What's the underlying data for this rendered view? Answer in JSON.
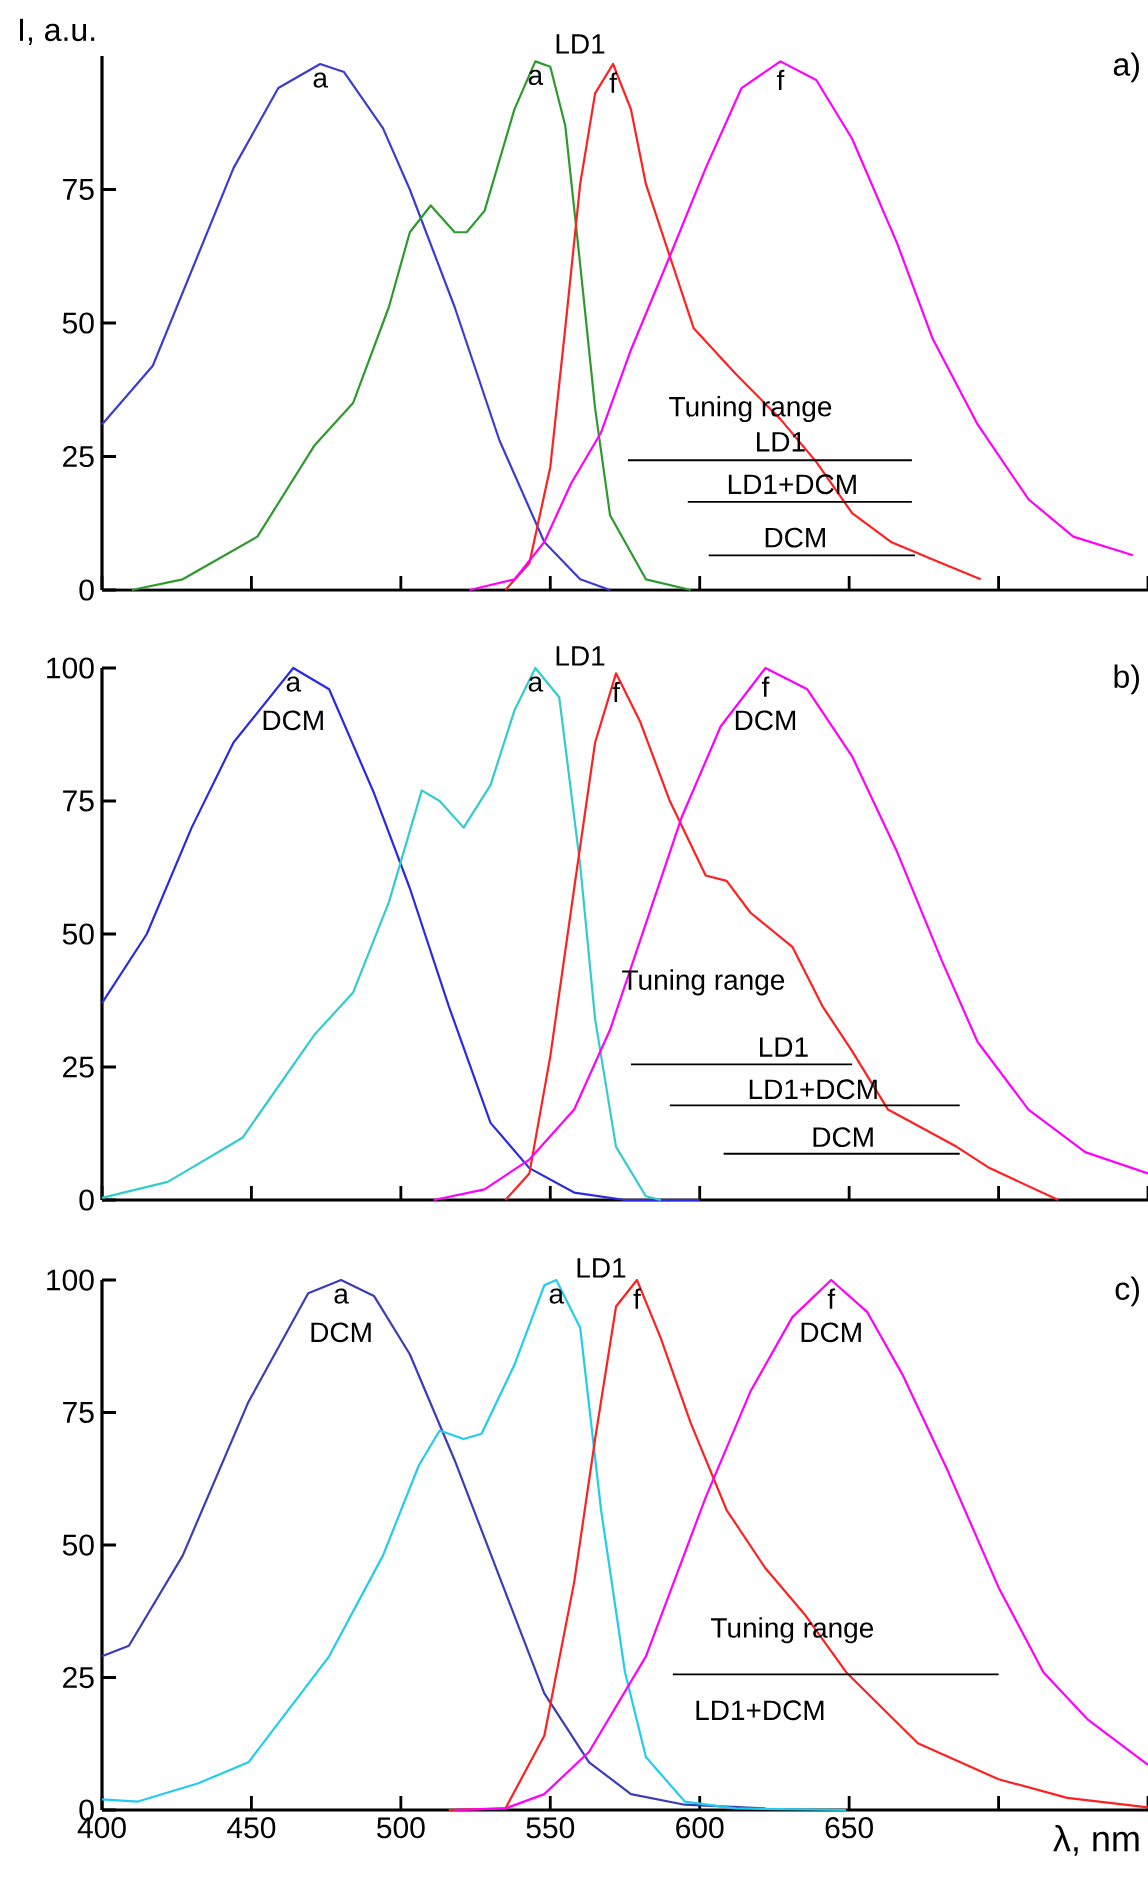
{
  "chart_data": [
    {
      "type": "line",
      "title": "a)",
      "ylabel": "I, a.u.",
      "xlim": [
        400,
        750
      ],
      "ylim": [
        0,
        100
      ],
      "tick_labels": "y",
      "xticks": [
        {
          "value": 400,
          "label": null
        },
        {
          "value": 450,
          "label": null
        },
        {
          "value": 500,
          "label": null
        },
        {
          "value": 550,
          "label": null
        },
        {
          "value": 600,
          "label": null
        },
        {
          "value": 650,
          "label": null
        },
        {
          "value": 700,
          "label": null
        },
        {
          "value": 750,
          "label": null
        }
      ],
      "yticks": [
        0,
        25,
        50,
        75
      ],
      "series": [
        {
          "color": "#3c3cd0",
          "x": [
            400,
            417,
            444,
            459,
            473,
            481,
            494,
            503,
            518,
            533,
            548,
            560,
            570
          ],
          "values": [
            31,
            42,
            79,
            94,
            98.5,
            97,
            86.5,
            75,
            53,
            28,
            9,
            2,
            0
          ]
        },
        {
          "color": "#2e9a2e",
          "x": [
            410,
            427,
            452,
            471,
            484,
            496,
            503,
            510,
            518,
            522,
            528,
            538,
            545,
            550,
            555,
            560,
            565,
            570,
            582,
            597
          ],
          "values": [
            0,
            2,
            10,
            27,
            35,
            53,
            67,
            72,
            67,
            67,
            71,
            90,
            99,
            98,
            87,
            61,
            34,
            14,
            2,
            0
          ]
        },
        {
          "color": "#ff2020",
          "x": [
            535,
            543,
            550,
            555,
            560,
            565,
            571,
            577,
            582,
            590,
            598,
            612,
            627,
            639,
            651,
            664,
            681,
            694
          ],
          "values": [
            0,
            5,
            23,
            49,
            76,
            93,
            98.5,
            90,
            76,
            62.5,
            49,
            40.5,
            32,
            24,
            14.4,
            9,
            5,
            2
          ]
        },
        {
          "color": "#ff00ff",
          "x": [
            523,
            538,
            548,
            557,
            567,
            577,
            590,
            602,
            614,
            627,
            639,
            651,
            666,
            678,
            693,
            710,
            725,
            745
          ],
          "values": [
            0,
            2,
            9,
            20,
            29.5,
            45,
            62.5,
            79,
            94,
            99,
            95.5,
            84.5,
            65,
            47,
            31,
            17,
            10,
            6.5
          ]
        },
        {
          "color": "#000000",
          "x": [
            576,
            671
          ],
          "values": [
            24.3,
            24.3
          ]
        },
        {
          "color": "#000000",
          "x": [
            596,
            671
          ],
          "values": [
            16.5,
            16.5
          ]
        },
        {
          "color": "#000000",
          "x": [
            603,
            672
          ],
          "values": [
            6.5,
            6.5
          ]
        }
      ],
      "annotations": [
        {
          "text": "a",
          "x": 473,
          "y": 98.5
        },
        {
          "text": "a",
          "x": 545,
          "y": 99
        },
        "LD1",
        {
          "text": "f",
          "x": 571,
          "y": 98.5
        },
        {
          "text": "f",
          "x": 627,
          "y": 99
        },
        "Tuning range",
        {
          "text": "LD1",
          "x": 627,
          "y": 25.5
        },
        {
          "text": "LD1+DCM",
          "x": 631,
          "y": 17.5
        },
        {
          "text": "DCM",
          "x": 632,
          "y": 7.5
        }
      ]
    },
    {
      "type": "line",
      "title": "b)",
      "xlim": [
        400,
        750
      ],
      "ylim": [
        0,
        100
      ],
      "tick_labels": "y",
      "xticks": [
        {
          "value": 400,
          "label": null
        },
        {
          "value": 450,
          "label": null
        },
        {
          "value": 500,
          "label": null
        },
        {
          "value": 550,
          "label": null
        },
        {
          "value": 600,
          "label": null
        },
        {
          "value": 650,
          "label": null
        },
        {
          "value": 700,
          "label": null
        },
        {
          "value": 750,
          "label": null
        }
      ],
      "yticks": [
        0,
        25,
        50,
        75,
        100
      ],
      "series": [
        {
          "color": "#2a2ae0",
          "x": [
            400,
            415,
            430,
            444,
            464,
            476,
            491,
            503,
            516,
            530,
            543,
            558,
            575,
            600
          ],
          "values": [
            37,
            50,
            70,
            86,
            100,
            96,
            76.5,
            58.6,
            36.5,
            14.5,
            6,
            1.4,
            0,
            0
          ]
        },
        {
          "color": "#33cccc",
          "x": [
            400,
            422,
            447,
            471,
            484,
            496,
            507,
            513,
            521,
            530,
            538,
            545,
            553,
            560,
            565,
            572,
            582,
            587
          ],
          "values": [
            0.4,
            3.4,
            11.7,
            31,
            39,
            56,
            77,
            75,
            70,
            78,
            92,
            100,
            94.5,
            63,
            34,
            10,
            0.7,
            0
          ]
        },
        {
          "color": "#ff2020",
          "x": [
            535,
            543,
            550,
            558,
            565,
            572,
            580,
            590,
            602,
            609,
            617,
            631,
            641,
            651,
            663,
            686,
            697,
            720
          ],
          "values": [
            0,
            5,
            27,
            58.6,
            86,
            99,
            90,
            75,
            61,
            60,
            54,
            47.6,
            36.5,
            28,
            17,
            10,
            6,
            0
          ]
        },
        {
          "color": "#ff00ff",
          "x": [
            511,
            528,
            543,
            558,
            570,
            582,
            594,
            607,
            622,
            636,
            651,
            666,
            681,
            693,
            710,
            729,
            750
          ],
          "values": [
            0,
            2,
            7.6,
            17,
            32,
            52,
            72,
            89,
            100,
            96,
            83.4,
            65.5,
            45,
            29.7,
            17,
            9,
            5
          ]
        },
        {
          "color": "#000000",
          "x": [
            577,
            651
          ],
          "values": [
            25.5,
            25.5
          ]
        },
        {
          "color": "#000000",
          "x": [
            590,
            687
          ],
          "values": [
            17.8,
            17.8
          ]
        },
        {
          "color": "#000000",
          "x": [
            608,
            687
          ],
          "values": [
            8.7,
            8.7
          ]
        }
      ],
      "annotations": [
        {
          "text": "a",
          "x": 464,
          "y": 100
        },
        {
          "text": "DCM",
          "x": 464,
          "y": 100
        },
        {
          "text": "a",
          "x": 545,
          "y": 100
        },
        "LD1",
        {
          "text": "f",
          "x": 572,
          "y": 99
        },
        {
          "text": "f",
          "x": 622,
          "y": 100
        },
        {
          "text": "DCM",
          "x": 622,
          "y": 100
        },
        "Tuning range",
        {
          "text": "LD1",
          "x": 628,
          "y": 26.5
        },
        {
          "text": "LD1+DCM",
          "x": 638,
          "y": 18.5
        },
        {
          "text": "DCM",
          "x": 648,
          "y": 9.5
        }
      ]
    },
    {
      "type": "line",
      "title": "c)",
      "xlabel": "λ, nm",
      "xlim": [
        400,
        750
      ],
      "ylim": [
        0,
        100
      ],
      "xticks": [
        400,
        450,
        500,
        550,
        600,
        650,
        {
          "value": 700,
          "label": null
        },
        {
          "value": 750,
          "label": null
        }
      ],
      "yticks": [
        0,
        25,
        50,
        75,
        100
      ],
      "series": [
        {
          "color": "#3c3cb8",
          "x": [
            400,
            409,
            427,
            449,
            469,
            480,
            491,
            503,
            518,
            533,
            548,
            563,
            577,
            595,
            622
          ],
          "values": [
            29,
            31,
            48,
            77,
            97.5,
            100,
            97,
            86,
            66,
            44,
            22,
            9,
            3,
            1,
            0.3
          ]
        },
        {
          "color": "#22ccee",
          "x": [
            400,
            412,
            432,
            449,
            476,
            494,
            506,
            513,
            521,
            527,
            538,
            548,
            552,
            560,
            567,
            575,
            582,
            595,
            612,
            649
          ],
          "values": [
            2,
            1.6,
            5,
            9,
            29,
            48,
            65,
            71.6,
            70,
            71,
            84,
            99,
            100,
            91,
            56.6,
            26,
            10,
            1.6,
            0.3,
            0
          ]
        },
        {
          "color": "#ff2020",
          "x": [
            516,
            535,
            548,
            558,
            565,
            572,
            579,
            587,
            597,
            609,
            622,
            635,
            649,
            673,
            700,
            723,
            750
          ],
          "values": [
            0,
            0.3,
            14,
            43,
            70,
            95,
            100,
            89,
            73,
            56.6,
            45.6,
            37,
            26,
            12.6,
            5.8,
            2.3,
            0.5
          ]
        },
        {
          "color": "#ff00ff",
          "x": [
            518,
            535,
            548,
            563,
            582,
            602,
            617,
            631,
            644,
            656,
            668,
            683,
            700,
            715,
            730,
            750
          ],
          "values": [
            0,
            0.3,
            3,
            11,
            29,
            59,
            79,
            93,
            100,
            94,
            82,
            64,
            42,
            26,
            17,
            8.5
          ]
        },
        {
          "color": "#000000",
          "x": [
            591,
            700
          ],
          "values": [
            25.6,
            25.6
          ]
        }
      ],
      "annotations": [
        {
          "text": "a",
          "x": 480,
          "y": 100
        },
        {
          "text": "DCM",
          "x": 480,
          "y": 100
        },
        {
          "text": "a",
          "x": 552,
          "y": 100
        },
        "LD1",
        {
          "text": "f",
          "x": 579,
          "y": 100
        },
        {
          "text": "f",
          "x": 644,
          "y": 100
        },
        {
          "text": "DCM",
          "x": 644,
          "y": 100
        },
        "Tuning range",
        "LD1+DCM"
      ]
    }
  ]
}
